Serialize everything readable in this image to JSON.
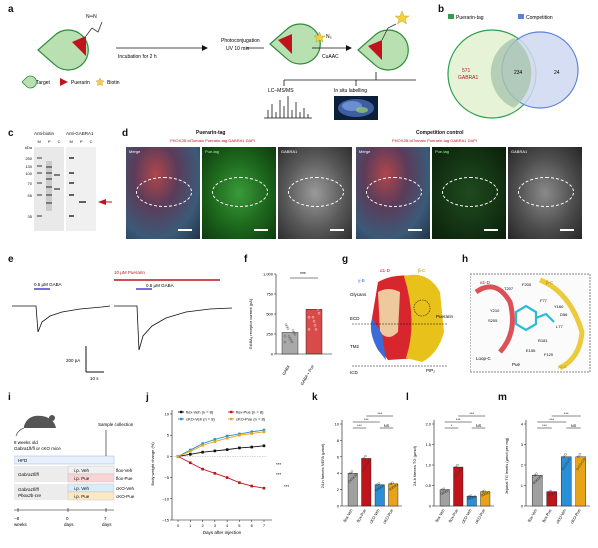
{
  "panel_labels": {
    "a": "a",
    "b": "b",
    "c": "c",
    "d": "d",
    "e": "e",
    "f": "f",
    "g": "g",
    "h": "h",
    "i": "i",
    "j": "j",
    "k": "k",
    "l": "l",
    "m": "m"
  },
  "a": {
    "azide_label": "N═N",
    "incubation": "Incubation for 2 h",
    "photo1": "Photoconjugation",
    "photo2": "UV 10 min",
    "cuaac": "CuAAC",
    "n3": "N₃",
    "lcms": "LC–MS/MS",
    "insitu": "In situ labelling",
    "legend_target": "Target",
    "legend_puerarin": "Puerarin",
    "legend_biotin": "Biotin"
  },
  "b": {
    "legend1": "Puerarin-tag",
    "legend2": "Competition",
    "left_count": "571",
    "left_gene": "GABRA1",
    "overlap": "234",
    "right_count": "24",
    "colors": {
      "left": "#2e9e50",
      "right": "#5b7fe0",
      "left_fill": "#e6f3d6",
      "right_fill": "#cfd8f2",
      "overlap_fill": "#a9c6ae"
    }
  },
  "c": {
    "title1": "Anti-biotin",
    "title2": "Anti-GABRA1",
    "lanes1": [
      "M",
      "P",
      "C"
    ],
    "lanes2": [
      "M",
      "P",
      "C"
    ],
    "markers": [
      "kDa",
      "250",
      "130",
      "100",
      "70",
      "55",
      "35"
    ]
  },
  "d": {
    "title1": "Puerarin-tag",
    "title2": "Competition control",
    "sub1": "PHOX2B-tdTomato Puerarin-tag GABRA1 DAPI",
    "sub2": "PHOX2B-tdTomato Puerarin-tag GABRA1 DAPI",
    "tiles": [
      "Merge",
      "Pue-tag",
      "GABRA1",
      "Merge",
      "Pue-tag",
      "GABRA1"
    ]
  },
  "e": {
    "gaba1": "0.5 μM GABA",
    "pue": "10 μM Puerarin",
    "gaba2": "0.5 μM GABA",
    "scale_y": "200 pA",
    "scale_x": "10 s"
  },
  "f": {
    "ylabel": "GABAₐ receptor current (pA)",
    "sig": "***",
    "categories": [
      "GABA",
      "GABA + Pue"
    ]
  },
  "g": {
    "labels": [
      "α1-D",
      "β-C",
      "γ-B",
      "Glycans",
      "ECD",
      "Puerarin",
      "TM2",
      "ICD",
      "PIP₂"
    ]
  },
  "h": {
    "labels": [
      "α1-D",
      "β-C",
      "T207",
      "F200",
      "Y210",
      "S205",
      "Y160",
      "D56",
      "F77",
      "R181",
      "L77",
      "E155",
      "F120",
      "Loop-C",
      "Pue",
      "β2-C"
    ]
  },
  "i": {
    "mouse_line1": "8 weeks old",
    "mouse_line2": "Gabra1fl/fl or cKO mice",
    "sample": "Sample collection",
    "hfd": "HFD",
    "geno1": "Gabra1fl/fl",
    "geno2a": "Gabra1fl/fl",
    "geno2b": "Phox2b-cre",
    "treat": [
      "i.p. Veh",
      "i.p. Pue",
      "i.p. Veh",
      "i.p. Pue"
    ],
    "groups": [
      "flox-Veh",
      "flox-Pue",
      "cKO-Veh",
      "cKO-Pue"
    ],
    "ticks": [
      "−8",
      "0",
      "7"
    ],
    "tick_units": [
      "weeks",
      "days",
      "days"
    ]
  },
  "chart_data": [
    {
      "panel": "f",
      "type": "bar",
      "categories": [
        "GABA",
        "GABA + Pue"
      ],
      "values": [
        270,
        560
      ],
      "ylabel": "GABAₐ receptor current (pA)",
      "ylim": [
        0,
        1000
      ],
      "yticks": [
        "0",
        "250",
        "500",
        "750",
        "1,000"
      ],
      "colors": [
        "#9a9a9a",
        "#d22b2b"
      ]
    },
    {
      "panel": "j",
      "type": "line",
      "x": [
        0,
        1,
        2,
        3,
        4,
        5,
        6,
        7
      ],
      "xlabel": "Days after injection",
      "ylabel": "Body weight change (%)",
      "ylim": [
        -15,
        10
      ],
      "yticks": [
        "−15",
        "−10",
        "−5",
        "0",
        "5",
        "10"
      ],
      "series": [
        {
          "name": "flox-Veh (n = 8)",
          "color": "#111111",
          "values": [
            0,
            0.5,
            1.0,
            1.3,
            1.6,
            2.0,
            2.2,
            2.5
          ]
        },
        {
          "name": "flox-Pue (n = 8)",
          "color": "#c0141c",
          "values": [
            0,
            -1.5,
            -3.0,
            -4.0,
            -5.0,
            -6.2,
            -7.0,
            -7.5
          ]
        },
        {
          "name": "cKO-Veh (n = 8)",
          "color": "#2a8fd6",
          "values": [
            0,
            1.5,
            3.0,
            4.0,
            4.8,
            5.3,
            5.8,
            6.2
          ]
        },
        {
          "name": "cKO-Pue (n = 8)",
          "color": "#e8a317",
          "values": [
            0,
            1.2,
            2.6,
            3.5,
            4.3,
            5.0,
            5.4,
            5.8
          ]
        }
      ],
      "sig": [
        "***",
        "***",
        "***"
      ]
    },
    {
      "panel": "k",
      "type": "bar",
      "categories": [
        "flox-Veh",
        "flox-Pue",
        "cKO-Veh",
        "cKO-Pue"
      ],
      "values": [
        4.0,
        5.8,
        2.6,
        2.7
      ],
      "ylabel": "24-h faeces NEFA (μmol)",
      "ylim": [
        0,
        10
      ],
      "yticks": [
        "0",
        "2",
        "4",
        "6",
        "8",
        "10"
      ],
      "colors": [
        "#a0a0a0",
        "#c0141c",
        "#2a8fd6",
        "#e8a317"
      ],
      "sig": [
        "***",
        "***",
        "NS",
        "***"
      ]
    },
    {
      "panel": "l",
      "type": "bar",
      "categories": [
        "flox-Veh",
        "flox-Pue",
        "cKO-Veh",
        "cKO-Pue"
      ],
      "values": [
        0.4,
        0.95,
        0.24,
        0.35
      ],
      "ylabel": "24-h faeces TG (μmol)",
      "ylim": [
        0,
        2.0
      ],
      "yticks": [
        "0",
        "0.5",
        "1.0",
        "1.5",
        "2.0"
      ],
      "colors": [
        "#a0a0a0",
        "#c0141c",
        "#2a8fd6",
        "#e8a317"
      ],
      "sig": [
        "*",
        "***",
        "NS",
        "***"
      ]
    },
    {
      "panel": "m",
      "type": "bar",
      "categories": [
        "flox-Veh",
        "flox-Pue",
        "cKO-Veh",
        "cKO-Pue"
      ],
      "values": [
        1.5,
        0.7,
        2.4,
        2.4
      ],
      "ylabel": "Jejunal TG levels (μmol per mg)",
      "ylim": [
        0,
        4
      ],
      "yticks": [
        "0",
        "1",
        "2",
        "3",
        "4"
      ],
      "colors": [
        "#a0a0a0",
        "#c0141c",
        "#2a8fd6",
        "#e8a317"
      ],
      "sig": [
        "***",
        "***",
        "NS",
        "***"
      ]
    }
  ]
}
